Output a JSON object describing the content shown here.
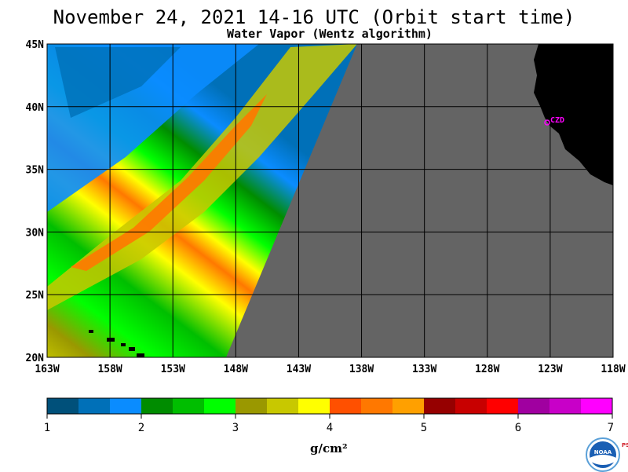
{
  "title": "November 24, 2021  14-16 UTC  (Orbit start time)",
  "subtitle": "Water Vapor (Wentz algorithm)",
  "map": {
    "lat_labels": [
      "45N",
      "40N",
      "35N",
      "30N",
      "25N",
      "20N"
    ],
    "lon_labels": [
      "163W",
      "158W",
      "153W",
      "148W",
      "143W",
      "138W",
      "133W",
      "128W",
      "123W",
      "118W"
    ],
    "station_label": "CZD",
    "colors": {
      "no_data": "#646464",
      "land": "#000000",
      "station": "#ff00ff"
    }
  },
  "colorbar": {
    "tick_labels": [
      "1",
      "2",
      "3",
      "4",
      "5",
      "6",
      "7"
    ],
    "unit": "g/cm²",
    "colors": [
      "#00507a",
      "#0070b8",
      "#0a8cff",
      "#008c00",
      "#00be00",
      "#00ff00",
      "#9a9800",
      "#c8c800",
      "#ffff00",
      "#ff5000",
      "#ff7800",
      "#ffa000",
      "#960000",
      "#c80000",
      "#ff0000",
      "#a000a0",
      "#c800c8",
      "#ff00ff"
    ]
  },
  "logo": {
    "text": "NOAA",
    "side_text": "PSL"
  }
}
